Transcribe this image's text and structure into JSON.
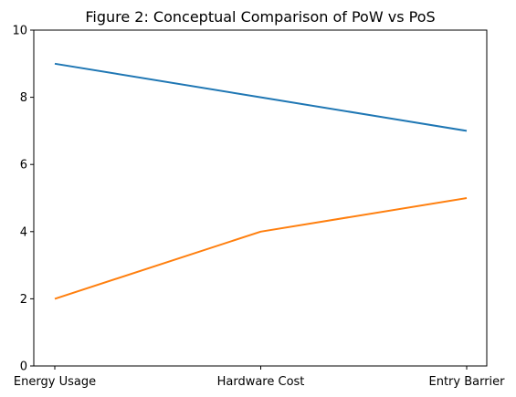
{
  "chart_data": {
    "type": "line",
    "title": "Figure 2: Conceptual Comparison of PoW vs PoS",
    "xlabel": "",
    "ylabel": "",
    "categories": [
      "Energy Usage",
      "Hardware Cost",
      "Entry Barrier"
    ],
    "ylim": [
      0,
      10
    ],
    "yticks": [
      0,
      2,
      4,
      6,
      8,
      10
    ],
    "grid": false,
    "series": [
      {
        "values": [
          9,
          8,
          7
        ],
        "color": "#1f77b4"
      },
      {
        "values": [
          2,
          4,
          5
        ],
        "color": "#ff7f0e"
      }
    ]
  }
}
